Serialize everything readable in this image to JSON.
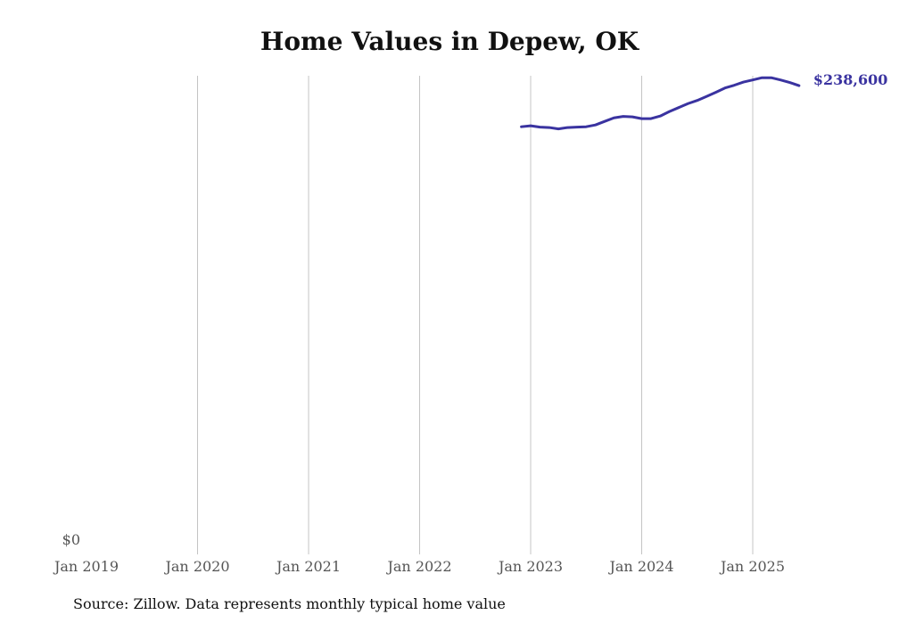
{
  "chart_data": {
    "type": "line",
    "title": "Home Values in Depew, OK",
    "xlabel": "",
    "ylabel": "",
    "source": "Source: Zillow. Data represents monthly typical home value",
    "x_ticks": [
      "Jan 2019",
      "Jan 2020",
      "Jan 2021",
      "Jan 2022",
      "Jan 2023",
      "Jan 2024",
      "Jan 2025"
    ],
    "y_ticks": [
      "$0"
    ],
    "xlim": [
      "2019-01",
      "2025-08"
    ],
    "ylim": [
      0,
      243600
    ],
    "grid": "vertical",
    "end_label": "$238,600",
    "line_color": "#3a33a0",
    "series": [
      {
        "name": "Typical home value",
        "x": [
          "2022-12",
          "2023-01",
          "2023-02",
          "2023-03",
          "2023-04",
          "2023-05",
          "2023-06",
          "2023-07",
          "2023-08",
          "2023-09",
          "2023-10",
          "2023-11",
          "2023-12",
          "2024-01",
          "2024-02",
          "2024-03",
          "2024-04",
          "2024-05",
          "2024-06",
          "2024-07",
          "2024-08",
          "2024-09",
          "2024-10",
          "2024-11",
          "2024-12",
          "2025-01",
          "2025-02",
          "2025-03",
          "2025-04",
          "2025-05",
          "2025-06"
        ],
        "values": [
          217800,
          218300,
          217600,
          217400,
          216700,
          217400,
          217600,
          217800,
          218700,
          220500,
          222300,
          223000,
          222800,
          221900,
          221900,
          223200,
          225500,
          227500,
          229500,
          231100,
          233100,
          235200,
          237400,
          238800,
          240400,
          241500,
          242600,
          242600,
          241500,
          240200,
          238600
        ]
      }
    ]
  }
}
